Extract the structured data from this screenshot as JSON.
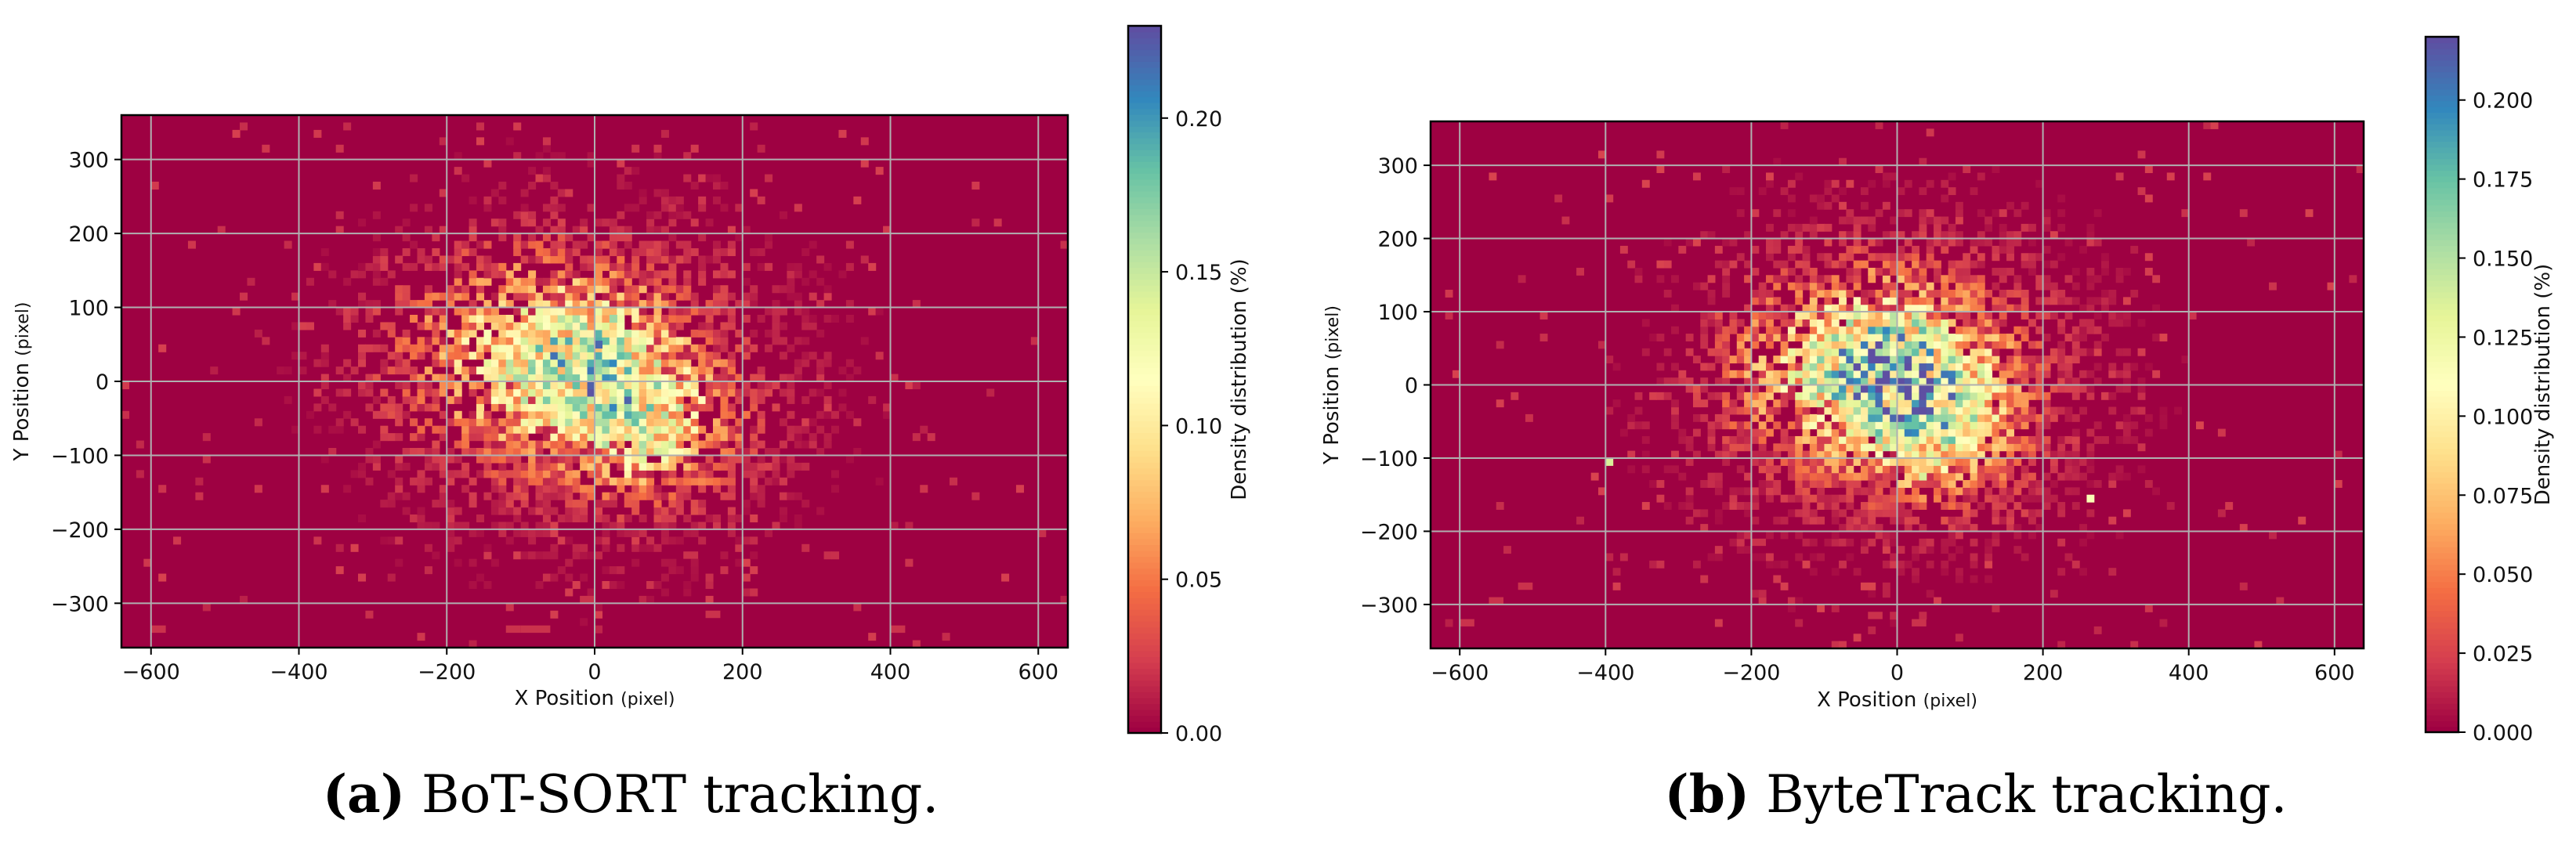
{
  "figure": {
    "panels": [
      {
        "caption_letter": "(a)",
        "caption_text": "BoT-SORT tracking.",
        "xlabel_main": "X Position",
        "xlabel_unit": "(pixel)",
        "ylabel_main": "Y Position",
        "ylabel_unit": "(pixel)",
        "colorbar_label": "Density distribution (%)"
      },
      {
        "caption_letter": "(b)",
        "caption_text": "ByteTrack tracking.",
        "xlabel_main": "X Position",
        "xlabel_unit": "(pixel)",
        "ylabel_main": "Y Position",
        "ylabel_unit": "(pixel)",
        "colorbar_label": "Density distribution (%)"
      }
    ]
  },
  "chart_data": [
    {
      "type": "heatmap",
      "title": "BoT-SORT tracking.",
      "xlabel": "X Position (pixel)",
      "ylabel": "Y Position (pixel)",
      "xlim": [
        -640,
        640
      ],
      "ylim": [
        -360,
        360
      ],
      "xticks": [
        -600,
        -400,
        -200,
        0,
        200,
        400,
        600
      ],
      "yticks": [
        -300,
        -200,
        -100,
        0,
        100,
        200,
        300
      ],
      "grid": true,
      "colormap": "Spectral",
      "colorbar": {
        "label": "Density distribution (%)",
        "range": [
          0,
          0.23
        ],
        "ticks": [
          "0.00",
          "0.05",
          "0.10",
          "0.15",
          "0.20"
        ]
      },
      "background_color": "#9e0142",
      "distribution": {
        "description_centers": [
          {
            "x": 0,
            "y": 20,
            "sx": 90,
            "sy": 70,
            "w": 1.0
          },
          {
            "x": 80,
            "y": -70,
            "sx": 70,
            "sy": 55,
            "w": 0.8
          },
          {
            "x": -120,
            "y": 40,
            "sx": 110,
            "sy": 90,
            "w": 0.6
          }
        ],
        "spread": {
          "sx": 200,
          "sy": 160
        },
        "peak_value": 0.22,
        "peak_points": [
          [
            0,
            45
          ],
          [
            80,
            -100
          ],
          [
            20,
            80
          ],
          [
            -40,
            -20
          ]
        ],
        "trail_points": [
          [
            -600,
            -340
          ],
          [
            -100,
            -340
          ],
          [
            -80,
            -340
          ],
          [
            -120,
            -340
          ],
          [
            400,
            -340
          ],
          [
            -20,
            -300
          ],
          [
            120,
            -240
          ],
          [
            150,
            -320
          ]
        ]
      }
    },
    {
      "type": "heatmap",
      "title": "ByteTrack tracking.",
      "xlabel": "X Position (pixel)",
      "ylabel": "Y Position (pixel)",
      "xlim": [
        -640,
        640
      ],
      "ylim": [
        -360,
        360
      ],
      "xticks": [
        -600,
        -400,
        -200,
        0,
        200,
        400,
        600
      ],
      "yticks": [
        -300,
        -200,
        -100,
        0,
        100,
        200,
        300
      ],
      "grid": true,
      "colormap": "Spectral",
      "colorbar": {
        "label": "Density distribution (%)",
        "range": [
          0,
          0.22
        ],
        "ticks": [
          "0.000",
          "0.025",
          "0.050",
          "0.075",
          "0.100",
          "0.125",
          "0.150",
          "0.175",
          "0.200"
        ]
      },
      "background_color": "#9e0142",
      "distribution": {
        "description_centers": [
          {
            "x": 0,
            "y": 30,
            "sx": 90,
            "sy": 70,
            "w": 1.0
          },
          {
            "x": 60,
            "y": -60,
            "sx": 70,
            "sy": 60,
            "w": 0.8
          },
          {
            "x": -80,
            "y": 20,
            "sx": 110,
            "sy": 80,
            "w": 0.6
          }
        ],
        "spread": {
          "sx": 200,
          "sy": 160
        },
        "peak_value": 0.21,
        "peak_points": [
          [
            0,
            60
          ],
          [
            30,
            -130
          ],
          [
            70,
            -50
          ],
          [
            260,
            -160
          ],
          [
            -400,
            -110
          ]
        ],
        "trail_points": [
          [
            -600,
            -330
          ],
          [
            -560,
            -300
          ],
          [
            -520,
            -280
          ],
          [
            -200,
            -220
          ],
          [
            20,
            -330
          ],
          [
            -40,
            -320
          ]
        ]
      }
    }
  ]
}
